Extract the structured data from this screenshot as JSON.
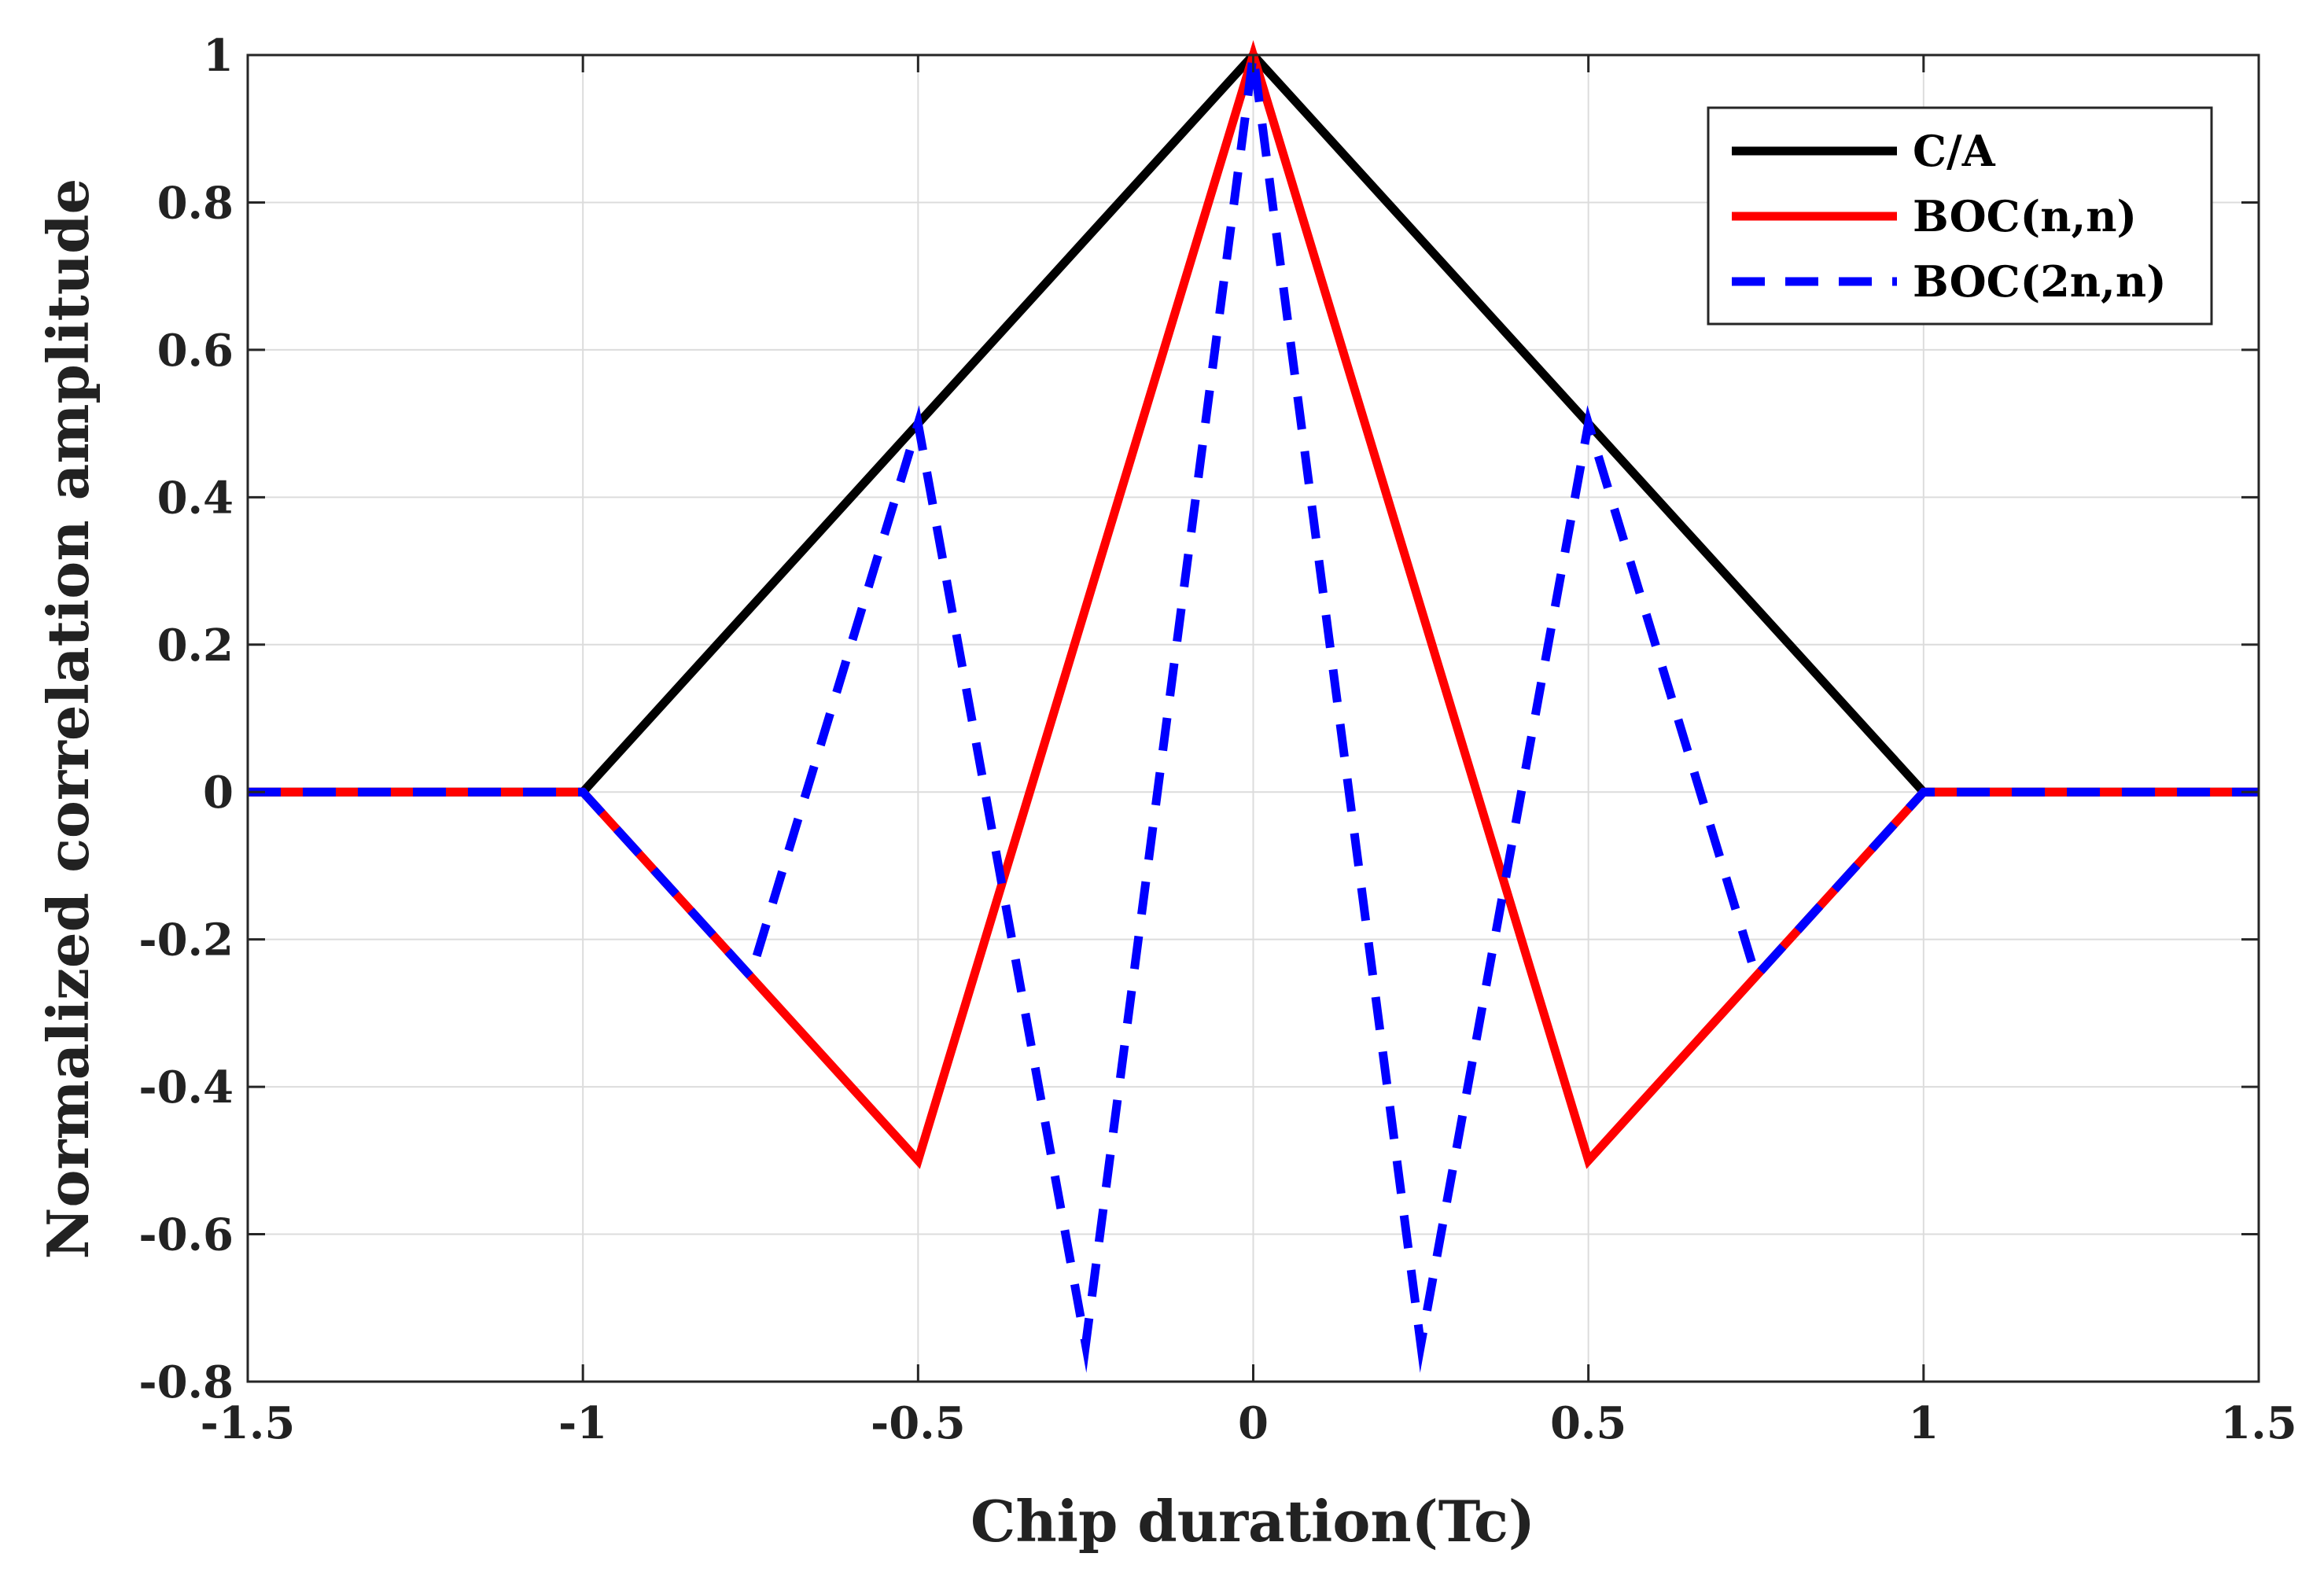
{
  "chart_data": {
    "type": "line",
    "title": "",
    "xlabel": "Chip duration(Tc)",
    "ylabel": "Normalized correlation amplitude",
    "xlim": [
      -1.5,
      1.5
    ],
    "ylim": [
      -0.8,
      1
    ],
    "xticks": [
      -1.5,
      -1,
      -0.5,
      0,
      0.5,
      1,
      1.5
    ],
    "xtick_labels": [
      "-1.5",
      "-1",
      "-0.5",
      "0",
      "0.5",
      "1",
      "1.5"
    ],
    "yticks": [
      -0.8,
      -0.6,
      -0.4,
      -0.2,
      0,
      0.2,
      0.4,
      0.6,
      0.8,
      1
    ],
    "ytick_labels": [
      "-0.8",
      "-0.6",
      "-0.4",
      "-0.2",
      "0",
      "0.2",
      "0.4",
      "0.6",
      "0.8",
      "1"
    ],
    "grid": true,
    "legend_position": "top-right",
    "series": [
      {
        "name": "C/A",
        "color": "#000000",
        "style": "solid",
        "x": [
          -1.5,
          -1,
          0,
          1,
          1.5
        ],
        "y": [
          0,
          0,
          1,
          0,
          0
        ]
      },
      {
        "name": "BOC(n,n)",
        "color": "#ff0000",
        "style": "solid",
        "x": [
          -1.5,
          -1,
          -0.5,
          0,
          0.5,
          1,
          1.5
        ],
        "y": [
          0,
          0,
          -0.5,
          1,
          -0.5,
          0,
          0
        ]
      },
      {
        "name": "BOC(2n,n)",
        "color": "#0000ff",
        "style": "dashed",
        "x": [
          -1.5,
          -1,
          -0.75,
          -0.5,
          -0.25,
          0,
          0.25,
          0.5,
          0.75,
          1,
          1.5
        ],
        "y": [
          0,
          0,
          -0.25,
          0.5,
          -0.75,
          1,
          -0.75,
          0.5,
          -0.25,
          0,
          0
        ]
      }
    ]
  }
}
